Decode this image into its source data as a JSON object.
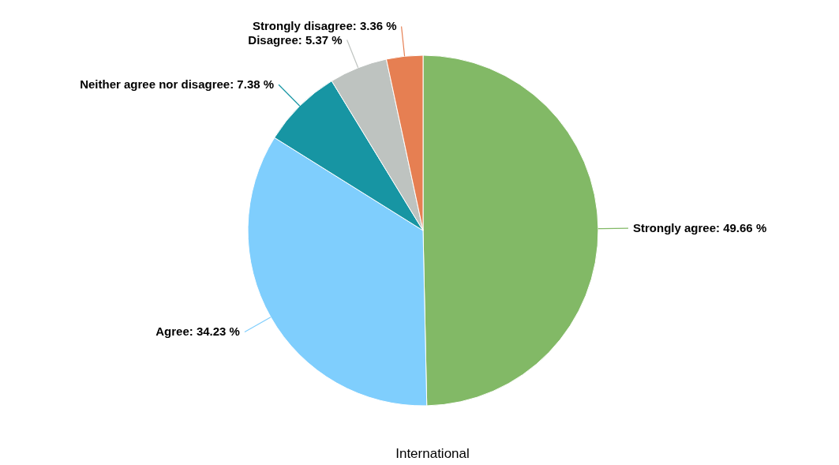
{
  "chart_data": {
    "type": "pie",
    "title": "International",
    "categories": [
      "Strongly agree",
      "Agree",
      "Neither agree nor disagree",
      "Disagree",
      "Strongly disagree"
    ],
    "values": [
      49.66,
      34.23,
      7.38,
      5.37,
      3.36
    ],
    "value_labels": [
      "49.66 %",
      "34.23 %",
      "7.38 %",
      "5.37 %",
      "3.36 %"
    ],
    "colors": [
      "#82b966",
      "#7fcefd",
      "#1795a3",
      "#bec3c0",
      "#e67f52"
    ]
  }
}
